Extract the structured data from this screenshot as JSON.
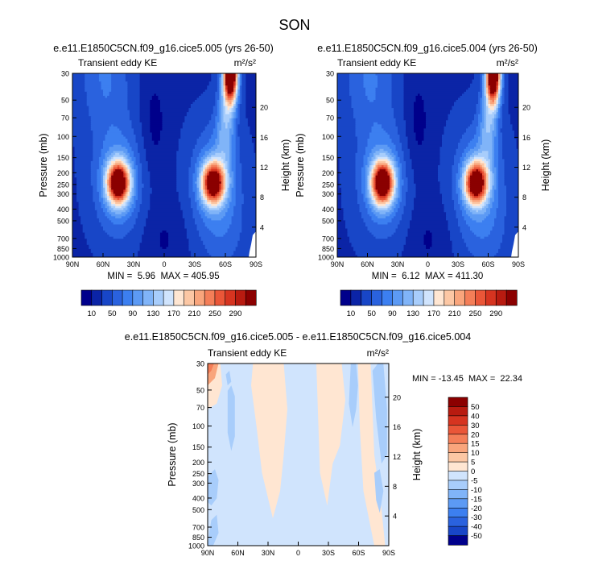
{
  "figure": {
    "season": "SON"
  },
  "chart_data": [
    {
      "type": "heatmap",
      "title": "e.e11.E1850C5CN.f09_g16.cice5.005 (yrs 26-50)",
      "left_label": "Transient eddy KE",
      "units": "m²/s²",
      "ylabel": "Pressure (mb)",
      "ylabel_right": "Height (km)",
      "x_ticks": [
        "90N",
        "60N",
        "30N",
        "0",
        "30S",
        "60S",
        "90S"
      ],
      "y_ticks": [
        "30",
        "50",
        "70",
        "100",
        "150",
        "200",
        "250",
        "300",
        "400",
        "500",
        "700",
        "850",
        "1000"
      ],
      "y_ticks_right": [
        "20",
        "16",
        "12",
        "8",
        "4"
      ],
      "stats": "MIN =  5.96  MAX = 405.95",
      "min": 5.96,
      "max": 405.95,
      "colorbar_labels": [
        "10",
        "50",
        "90",
        "130",
        "170",
        "210",
        "250",
        "290"
      ],
      "colorbar_colors": [
        "#00008b",
        "#0b24a6",
        "#1846c7",
        "#2a62de",
        "#3c7ff0",
        "#5c9af4",
        "#80b4f8",
        "#a8cdfb",
        "#d0e4fd",
        "#ffe6d2",
        "#fcc7a4",
        "#f9a57c",
        "#f47e58",
        "#ea5638",
        "#d63420",
        "#b81b10",
        "#8b0000"
      ],
      "features": [
        {
          "name": "NH jet maximum",
          "lat": 45,
          "pressure_mb": 250
        },
        {
          "name": "SH jet maximum",
          "lat": -50,
          "pressure_mb": 250
        },
        {
          "name": "SH stratospheric maximum",
          "lat": -65,
          "pressure_mb": 30
        }
      ]
    },
    {
      "type": "heatmap",
      "title": "e.e11.E1850C5CN.f09_g16.cice5.004 (yrs 26-50)",
      "left_label": "Transient eddy KE",
      "units": "m²/s²",
      "ylabel": "Pressure (mb)",
      "ylabel_right": "Height (km)",
      "x_ticks": [
        "90N",
        "60N",
        "30N",
        "0",
        "30S",
        "60S",
        "90S"
      ],
      "y_ticks": [
        "30",
        "50",
        "70",
        "100",
        "150",
        "200",
        "250",
        "300",
        "400",
        "500",
        "700",
        "850",
        "1000"
      ],
      "y_ticks_right": [
        "20",
        "16",
        "12",
        "8",
        "4"
      ],
      "stats": "MIN =  6.12  MAX = 411.30",
      "min": 6.12,
      "max": 411.3,
      "colorbar_labels": [
        "10",
        "50",
        "90",
        "130",
        "170",
        "210",
        "250",
        "290"
      ],
      "colorbar_colors": [
        "#00008b",
        "#0b24a6",
        "#1846c7",
        "#2a62de",
        "#3c7ff0",
        "#5c9af4",
        "#80b4f8",
        "#a8cdfb",
        "#d0e4fd",
        "#ffe6d2",
        "#fcc7a4",
        "#f9a57c",
        "#f47e58",
        "#ea5638",
        "#d63420",
        "#b81b10",
        "#8b0000"
      ],
      "features": [
        {
          "name": "NH jet maximum",
          "lat": 45,
          "pressure_mb": 250
        },
        {
          "name": "SH jet maximum",
          "lat": -50,
          "pressure_mb": 250
        },
        {
          "name": "SH stratospheric maximum",
          "lat": -65,
          "pressure_mb": 30
        }
      ]
    },
    {
      "type": "heatmap",
      "title": "e.e11.E1850C5CN.f09_g16.cice5.005 - e.e11.E1850C5CN.f09_g16.cice5.004",
      "left_label": "Transient eddy KE",
      "units": "m²/s²",
      "ylabel": "Pressure (mb)",
      "ylabel_right": "Height (km)",
      "x_ticks": [
        "90N",
        "60N",
        "30N",
        "0",
        "30S",
        "60S",
        "90S"
      ],
      "y_ticks": [
        "30",
        "50",
        "70",
        "100",
        "150",
        "200",
        "250",
        "300",
        "400",
        "500",
        "700",
        "850",
        "1000"
      ],
      "y_ticks_right": [
        "20",
        "16",
        "12",
        "8",
        "4"
      ],
      "stats": "MIN = -13.45  MAX =  22.34",
      "min": -13.45,
      "max": 22.34,
      "colorbar_labels": [
        "50",
        "40",
        "30",
        "20",
        "15",
        "10",
        "5",
        "0",
        "-5",
        "-10",
        "-15",
        "-20",
        "-30",
        "-40",
        "-50"
      ],
      "colorbar_colors": [
        "#8b0000",
        "#b81b10",
        "#d63420",
        "#ea5638",
        "#f47e58",
        "#f9a57c",
        "#fcc7a4",
        "#ffe6d2",
        "#d0e4fd",
        "#a8cdfb",
        "#80b4f8",
        "#5c9af4",
        "#3c7ff0",
        "#2a62de",
        "#1846c7",
        "#00008b"
      ]
    }
  ]
}
